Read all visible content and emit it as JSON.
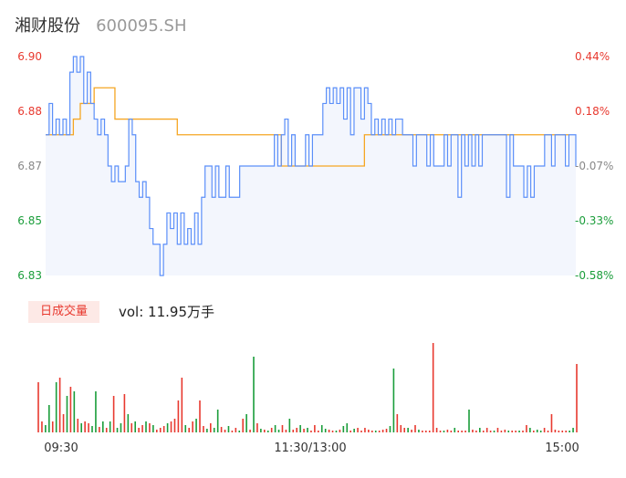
{
  "header": {
    "name": "湘财股份",
    "code": "600095.SH"
  },
  "volume_panel": {
    "badge": "日成交量",
    "label": "vol: 11.95万手"
  },
  "colors": {
    "up": "#e8392f",
    "down": "#1a9d3a",
    "neutral": "#888888",
    "price_line": "#5b8ff9",
    "avg_line": "#f5a623",
    "area_fill": "#f3f6fd"
  },
  "chart_data": [
    {
      "type": "line",
      "title": "",
      "y_ticks": [
        6.83,
        6.85,
        6.87,
        6.88,
        6.9
      ],
      "y_tick_labels": [
        "6.83",
        "6.85",
        "6.87",
        "6.88",
        "6.90"
      ],
      "y_tick_colors": [
        "down",
        "down",
        "neutral",
        "up",
        "up"
      ],
      "pct_ticks": [
        "-0.58%",
        "-0.33%",
        "-0.07%",
        "0.18%",
        "0.44%"
      ],
      "pct_tick_colors": [
        "down",
        "down",
        "neutral",
        "up",
        "up"
      ],
      "ylim": [
        6.83,
        6.9
      ],
      "x_labels": [
        "09:30",
        "11:30/13:00",
        "15:00"
      ],
      "series": [
        {
          "role": "price",
          "values": [
            6.875,
            6.885,
            6.875,
            6.88,
            6.875,
            6.88,
            6.875,
            6.895,
            6.9,
            6.895,
            6.9,
            6.885,
            6.895,
            6.885,
            6.88,
            6.875,
            6.88,
            6.875,
            6.865,
            6.86,
            6.865,
            6.86,
            6.86,
            6.865,
            6.88,
            6.875,
            6.86,
            6.855,
            6.86,
            6.855,
            6.845,
            6.84,
            6.84,
            6.83,
            6.84,
            6.85,
            6.845,
            6.85,
            6.84,
            6.85,
            6.84,
            6.845,
            6.84,
            6.85,
            6.84,
            6.855,
            6.865,
            6.865,
            6.855,
            6.865,
            6.855,
            6.855,
            6.865,
            6.855,
            6.855,
            6.855,
            6.865,
            6.865,
            6.865,
            6.865,
            6.865,
            6.865,
            6.865,
            6.865,
            6.865,
            6.865,
            6.875,
            6.865,
            6.875,
            6.88,
            6.865,
            6.875,
            6.865,
            6.865,
            6.865,
            6.875,
            6.865,
            6.875,
            6.875,
            6.875,
            6.885,
            6.89,
            6.885,
            6.89,
            6.885,
            6.89,
            6.88,
            6.89,
            6.875,
            6.89,
            6.89,
            6.88,
            6.89,
            6.885,
            6.875,
            6.88,
            6.875,
            6.88,
            6.875,
            6.88,
            6.875,
            6.88,
            6.88,
            6.875,
            6.875,
            6.875,
            6.865,
            6.875,
            6.875,
            6.875,
            6.865,
            6.875,
            6.865,
            6.865,
            6.865,
            6.875,
            6.865,
            6.875,
            6.875,
            6.855,
            6.875,
            6.865,
            6.875,
            6.865,
            6.875,
            6.865,
            6.875,
            6.875,
            6.875,
            6.875,
            6.875,
            6.875,
            6.875,
            6.855,
            6.875,
            6.865,
            6.865,
            6.865,
            6.855,
            6.865,
            6.855,
            6.865,
            6.865,
            6.865,
            6.875,
            6.875,
            6.865,
            6.875,
            6.875,
            6.875,
            6.865,
            6.875,
            6.875,
            6.865
          ],
          "color_key": "price_line"
        },
        {
          "role": "average",
          "values": [
            6.875,
            6.875,
            6.875,
            6.875,
            6.875,
            6.875,
            6.875,
            6.875,
            6.88,
            6.88,
            6.885,
            6.885,
            6.885,
            6.885,
            6.89,
            6.89,
            6.89,
            6.89,
            6.89,
            6.89,
            6.88,
            6.88,
            6.88,
            6.88,
            6.88,
            6.88,
            6.88,
            6.88,
            6.88,
            6.88,
            6.88,
            6.88,
            6.88,
            6.88,
            6.88,
            6.88,
            6.88,
            6.88,
            6.875,
            6.875,
            6.875,
            6.875,
            6.875,
            6.875,
            6.875,
            6.875,
            6.875,
            6.875,
            6.875,
            6.875,
            6.875,
            6.875,
            6.875,
            6.875,
            6.875,
            6.875,
            6.875,
            6.875,
            6.875,
            6.875,
            6.875,
            6.875,
            6.875,
            6.875,
            6.875,
            6.875,
            6.875,
            6.875,
            6.865,
            6.865,
            6.865,
            6.865,
            6.865,
            6.865,
            6.865,
            6.865,
            6.865,
            6.865,
            6.865,
            6.865,
            6.865,
            6.865,
            6.865,
            6.865,
            6.865,
            6.865,
            6.865,
            6.865,
            6.865,
            6.865,
            6.865,
            6.865,
            6.875,
            6.875,
            6.875,
            6.875,
            6.875,
            6.875,
            6.875,
            6.875,
            6.875,
            6.875,
            6.875,
            6.875,
            6.875,
            6.875,
            6.875,
            6.875,
            6.875,
            6.875,
            6.875,
            6.875,
            6.875,
            6.875,
            6.875,
            6.875,
            6.875,
            6.875,
            6.875,
            6.875,
            6.875,
            6.875,
            6.875,
            6.875,
            6.875,
            6.875,
            6.875,
            6.875,
            6.875,
            6.875,
            6.875,
            6.875,
            6.875,
            6.875,
            6.875,
            6.875,
            6.875,
            6.875,
            6.875,
            6.875,
            6.875,
            6.875,
            6.875,
            6.875,
            6.875,
            6.875,
            6.875,
            6.875,
            6.875,
            6.875,
            6.875,
            6.875
          ],
          "color_key": "avg_line"
        }
      ]
    },
    {
      "type": "bar",
      "title": "",
      "x_labels": [
        "09:30",
        "11:30/13:00",
        "15:00"
      ],
      "values": [
        0.55,
        0.12,
        0.08,
        0.3,
        0.12,
        0.55,
        0.6,
        0.2,
        0.4,
        0.5,
        0.45,
        0.15,
        0.1,
        0.12,
        0.1,
        0.07,
        0.45,
        0.06,
        0.12,
        0.05,
        0.12,
        0.4,
        0.05,
        0.1,
        0.42,
        0.2,
        0.1,
        0.12,
        0.05,
        0.08,
        0.12,
        0.1,
        0.08,
        0.03,
        0.05,
        0.07,
        0.1,
        0.12,
        0.15,
        0.35,
        0.6,
        0.08,
        0.05,
        0.12,
        0.15,
        0.35,
        0.07,
        0.04,
        0.1,
        0.05,
        0.25,
        0.06,
        0.03,
        0.07,
        0.02,
        0.05,
        0.02,
        0.15,
        0.2,
        0.03,
        0.83,
        0.1,
        0.04,
        0.03,
        0.02,
        0.05,
        0.08,
        0.03,
        0.08,
        0.03,
        0.15,
        0.03,
        0.05,
        0.08,
        0.04,
        0.05,
        0.02,
        0.08,
        0.02,
        0.08,
        0.04,
        0.03,
        0.02,
        0.02,
        0.03,
        0.07,
        0.1,
        0.02,
        0.04,
        0.05,
        0.02,
        0.05,
        0.03,
        0.02,
        0.02,
        0.02,
        0.03,
        0.04,
        0.07,
        0.7,
        0.2,
        0.08,
        0.05,
        0.05,
        0.03,
        0.08,
        0.03,
        0.02,
        0.02,
        0.02,
        0.98,
        0.05,
        0.02,
        0.02,
        0.03,
        0.02,
        0.05,
        0.02,
        0.02,
        0.02,
        0.25,
        0.03,
        0.02,
        0.05,
        0.02,
        0.05,
        0.02,
        0.02,
        0.05,
        0.02,
        0.03,
        0.02,
        0.02,
        0.02,
        0.02,
        0.02,
        0.08,
        0.05,
        0.02,
        0.03,
        0.02,
        0.05,
        0.02,
        0.2,
        0.03,
        0.02,
        0.02,
        0.02,
        0.02,
        0.05,
        0.75
      ],
      "colors": [
        "up",
        "up",
        "down",
        "down",
        "up",
        "down",
        "up",
        "up",
        "down",
        "up",
        "down",
        "up",
        "down",
        "up",
        "up",
        "down",
        "down",
        "up",
        "down",
        "up",
        "down",
        "up",
        "down",
        "down",
        "up",
        "down",
        "up",
        "down",
        "up",
        "up",
        "down",
        "up",
        "down",
        "up",
        "up",
        "up",
        "down",
        "up",
        "up",
        "up",
        "up",
        "down",
        "up",
        "up",
        "down",
        "up",
        "up",
        "down",
        "up",
        "down",
        "down",
        "up",
        "up",
        "down",
        "up",
        "up",
        "down",
        "up",
        "down",
        "up",
        "down",
        "up",
        "down",
        "up",
        "down",
        "up",
        "down",
        "down",
        "up",
        "up",
        "down",
        "up",
        "up",
        "down",
        "up",
        "down",
        "up",
        "up",
        "up",
        "down",
        "down",
        "up",
        "up",
        "down",
        "up",
        "down",
        "down",
        "up",
        "down",
        "up",
        "up",
        "up",
        "up",
        "up",
        "down",
        "up",
        "up",
        "up",
        "down",
        "down",
        "up",
        "up",
        "up",
        "down",
        "up",
        "up",
        "down",
        "up",
        "up",
        "up",
        "up",
        "up",
        "up",
        "down",
        "up",
        "up",
        "down",
        "up",
        "up",
        "up",
        "down",
        "up",
        "up",
        "down",
        "up",
        "up",
        "up",
        "down",
        "up",
        "up",
        "up",
        "down",
        "up",
        "up",
        "down",
        "up",
        "up",
        "down",
        "up",
        "down",
        "down",
        "up",
        "up",
        "up",
        "up",
        "up",
        "up",
        "up",
        "down",
        "down",
        "up",
        "up",
        "up"
      ]
    }
  ]
}
